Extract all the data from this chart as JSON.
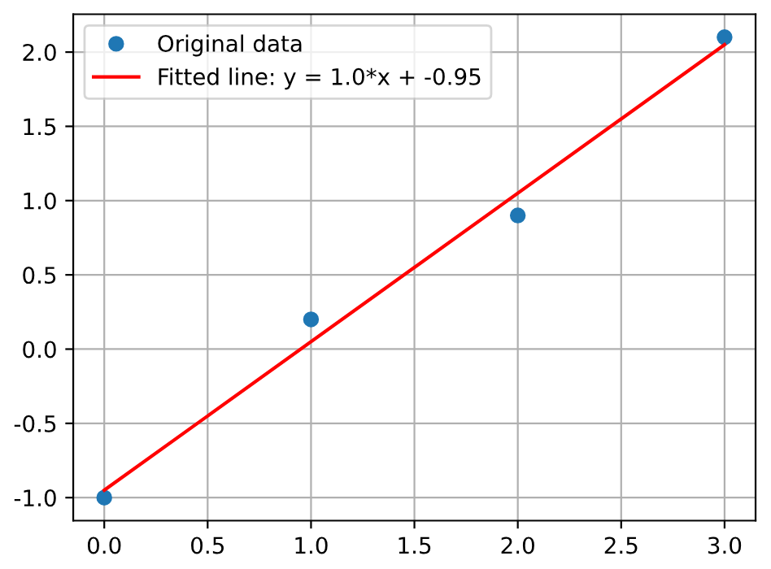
{
  "chart_data": {
    "type": "scatter",
    "series": [
      {
        "name": "Original data",
        "color": "#1f77b4",
        "marker": "circle",
        "x": [
          0,
          1,
          2,
          3
        ],
        "values": [
          -1.0,
          0.2,
          0.9,
          2.1
        ]
      },
      {
        "name": "Fitted line: y = 1.0*x + -0.95",
        "type": "line",
        "marker": "none",
        "color": "#ff0000",
        "x": [
          0,
          3
        ],
        "values": [
          -0.95,
          2.05
        ]
      }
    ],
    "xlim": [
      -0.15,
      3.15
    ],
    "xticks": [
      {
        "value": 0,
        "label": "0.0"
      },
      0.5,
      {
        "value": 1,
        "label": "1.0"
      },
      1.5,
      {
        "value": 2,
        "label": "2.0"
      },
      2.5,
      {
        "value": 3,
        "label": "3.0"
      }
    ],
    "ylim": [
      -1.155,
      2.255
    ],
    "yticks": [
      {
        "value": -1,
        "label": "-1.0"
      },
      -0.5,
      {
        "value": 0,
        "label": "0.0"
      },
      0.5,
      {
        "value": 1,
        "label": "1.0"
      },
      1.5,
      {
        "value": 2,
        "label": "2.0"
      }
    ],
    "grid": true,
    "legend": "top left"
  }
}
